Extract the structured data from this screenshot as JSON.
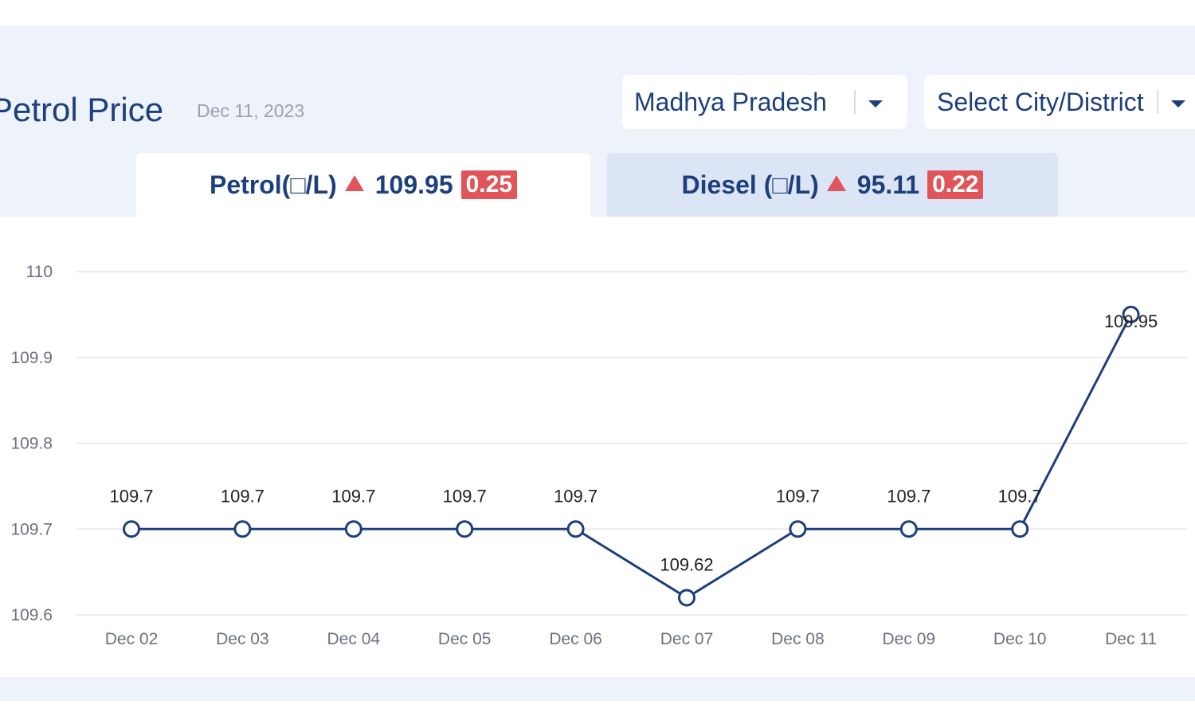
{
  "header": {
    "title": "Petrol Price",
    "date": "Dec 11, 2023",
    "state_select": "Madhya Pradesh",
    "city_select": "Select City/District"
  },
  "tabs": [
    {
      "label": "Petrol(□/L)",
      "price": "109.95",
      "change": "0.25",
      "active": true
    },
    {
      "label": "Diesel (□/L)",
      "price": "95.11",
      "change": "0.22",
      "active": false
    }
  ],
  "colors": {
    "brand": "#1d3f7c",
    "increase": "#e0555a",
    "line": "#1d3f7c",
    "header_bg": "#eef2fb"
  },
  "icons": {
    "increase": "triangle-up-icon",
    "dropdown": "caret-down-icon"
  },
  "chart_data": {
    "type": "line",
    "categories": [
      "Dec 02",
      "Dec 03",
      "Dec 04",
      "Dec 05",
      "Dec 06",
      "Dec 07",
      "Dec 08",
      "Dec 09",
      "Dec 10",
      "Dec 11"
    ],
    "values": [
      109.7,
      109.7,
      109.7,
      109.7,
      109.7,
      109.62,
      109.7,
      109.7,
      109.7,
      109.95
    ],
    "data_labels": [
      "109.7",
      "109.7",
      "109.7",
      "109.7",
      "109.7",
      "109.62",
      "109.7",
      "109.7",
      "109.7",
      "109.95"
    ],
    "yticks": [
      "109.6",
      "109.7",
      "109.8",
      "109.9",
      "110"
    ],
    "ytick_values": [
      109.6,
      109.7,
      109.8,
      109.9,
      110
    ],
    "ylim": [
      109.6,
      110
    ],
    "grid": true,
    "markers": "hollow-circle"
  }
}
